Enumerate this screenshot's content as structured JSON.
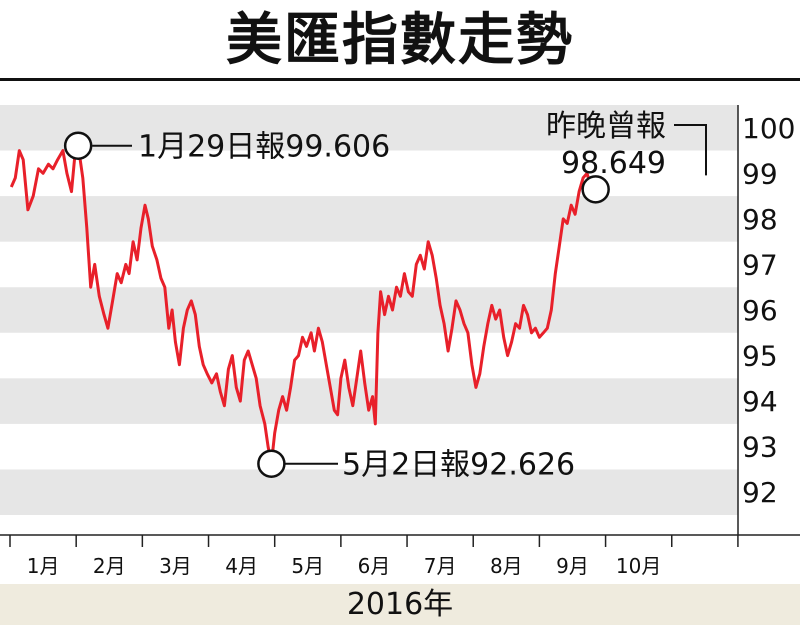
{
  "page": {
    "title": "美匯指數走勢"
  },
  "chart_data": {
    "type": "line",
    "title": "美匯指數走勢",
    "xlabel": "2016年",
    "ylabel": "",
    "ylim": [
      91.5,
      100.5
    ],
    "yticks": [
      92,
      93,
      94,
      95,
      96,
      97,
      98,
      99,
      100
    ],
    "x_range": [
      0.0,
      10.85
    ],
    "grid": "horizontal bands",
    "months": [
      "1月",
      "2月",
      "3月",
      "4月",
      "5月",
      "6月",
      "7月",
      "8月",
      "9月",
      "10月"
    ],
    "series": [
      {
        "name": "",
        "color": "#e8202a",
        "points": [
          [
            0.02,
            98.7
          ],
          [
            0.08,
            98.9
          ],
          [
            0.14,
            99.5
          ],
          [
            0.2,
            99.3
          ],
          [
            0.27,
            98.2
          ],
          [
            0.35,
            98.5
          ],
          [
            0.43,
            99.1
          ],
          [
            0.5,
            99.0
          ],
          [
            0.58,
            99.2
          ],
          [
            0.65,
            99.1
          ],
          [
            0.72,
            99.3
          ],
          [
            0.8,
            99.5
          ],
          [
            0.86,
            99.0
          ],
          [
            0.93,
            98.6
          ],
          [
            0.98,
            99.4
          ],
          [
            1.03,
            99.606
          ],
          [
            1.1,
            98.9
          ],
          [
            1.16,
            97.8
          ],
          [
            1.22,
            96.5
          ],
          [
            1.28,
            97.0
          ],
          [
            1.35,
            96.3
          ],
          [
            1.42,
            95.9
          ],
          [
            1.48,
            95.6
          ],
          [
            1.55,
            96.2
          ],
          [
            1.62,
            96.8
          ],
          [
            1.68,
            96.6
          ],
          [
            1.75,
            97.0
          ],
          [
            1.8,
            96.8
          ],
          [
            1.86,
            97.5
          ],
          [
            1.92,
            97.1
          ],
          [
            1.98,
            97.8
          ],
          [
            2.04,
            98.3
          ],
          [
            2.09,
            98.0
          ],
          [
            2.15,
            97.4
          ],
          [
            2.22,
            97.1
          ],
          [
            2.28,
            96.7
          ],
          [
            2.34,
            96.5
          ],
          [
            2.4,
            95.6
          ],
          [
            2.45,
            96.0
          ],
          [
            2.5,
            95.3
          ],
          [
            2.56,
            94.8
          ],
          [
            2.62,
            95.6
          ],
          [
            2.68,
            96.0
          ],
          [
            2.74,
            96.2
          ],
          [
            2.8,
            95.9
          ],
          [
            2.86,
            95.2
          ],
          [
            2.92,
            94.8
          ],
          [
            2.98,
            94.6
          ],
          [
            3.05,
            94.4
          ],
          [
            3.12,
            94.6
          ],
          [
            3.18,
            94.2
          ],
          [
            3.24,
            93.9
          ],
          [
            3.3,
            94.7
          ],
          [
            3.36,
            95.0
          ],
          [
            3.42,
            94.3
          ],
          [
            3.48,
            94.0
          ],
          [
            3.54,
            94.9
          ],
          [
            3.6,
            95.1
          ],
          [
            3.66,
            94.8
          ],
          [
            3.72,
            94.5
          ],
          [
            3.78,
            93.9
          ],
          [
            3.85,
            93.5
          ],
          [
            3.9,
            93.0
          ],
          [
            3.95,
            92.626
          ],
          [
            4.0,
            93.3
          ],
          [
            4.06,
            93.8
          ],
          [
            4.12,
            94.1
          ],
          [
            4.18,
            93.8
          ],
          [
            4.24,
            94.3
          ],
          [
            4.3,
            94.9
          ],
          [
            4.36,
            95.0
          ],
          [
            4.42,
            95.4
          ],
          [
            4.48,
            95.2
          ],
          [
            4.55,
            95.5
          ],
          [
            4.6,
            95.1
          ],
          [
            4.66,
            95.6
          ],
          [
            4.72,
            95.3
          ],
          [
            4.78,
            94.8
          ],
          [
            4.84,
            94.3
          ],
          [
            4.9,
            93.8
          ],
          [
            4.95,
            93.7
          ],
          [
            5.0,
            94.5
          ],
          [
            5.06,
            94.9
          ],
          [
            5.12,
            94.3
          ],
          [
            5.18,
            93.9
          ],
          [
            5.24,
            94.5
          ],
          [
            5.3,
            95.1
          ],
          [
            5.36,
            94.4
          ],
          [
            5.42,
            93.8
          ],
          [
            5.48,
            94.1
          ],
          [
            5.52,
            93.5
          ],
          [
            5.56,
            95.5
          ],
          [
            5.6,
            96.4
          ],
          [
            5.66,
            95.9
          ],
          [
            5.72,
            96.3
          ],
          [
            5.78,
            96.0
          ],
          [
            5.84,
            96.5
          ],
          [
            5.9,
            96.3
          ],
          [
            5.96,
            96.8
          ],
          [
            6.02,
            96.4
          ],
          [
            6.08,
            96.3
          ],
          [
            6.14,
            97.0
          ],
          [
            6.2,
            97.2
          ],
          [
            6.26,
            96.9
          ],
          [
            6.32,
            97.5
          ],
          [
            6.38,
            97.2
          ],
          [
            6.44,
            96.7
          ],
          [
            6.5,
            96.1
          ],
          [
            6.56,
            95.7
          ],
          [
            6.62,
            95.1
          ],
          [
            6.68,
            95.6
          ],
          [
            6.74,
            96.2
          ],
          [
            6.8,
            96.0
          ],
          [
            6.86,
            95.7
          ],
          [
            6.92,
            95.5
          ],
          [
            6.98,
            94.8
          ],
          [
            7.04,
            94.3
          ],
          [
            7.1,
            94.6
          ],
          [
            7.16,
            95.2
          ],
          [
            7.22,
            95.7
          ],
          [
            7.28,
            96.1
          ],
          [
            7.34,
            95.8
          ],
          [
            7.4,
            96.0
          ],
          [
            7.46,
            95.4
          ],
          [
            7.52,
            95.0
          ],
          [
            7.58,
            95.3
          ],
          [
            7.64,
            95.7
          ],
          [
            7.7,
            95.6
          ],
          [
            7.76,
            96.1
          ],
          [
            7.82,
            95.9
          ],
          [
            7.88,
            95.5
          ],
          [
            7.94,
            95.6
          ],
          [
            8.0,
            95.4
          ],
          [
            8.06,
            95.5
          ],
          [
            8.12,
            95.6
          ],
          [
            8.18,
            96.0
          ],
          [
            8.24,
            96.8
          ],
          [
            8.3,
            97.4
          ],
          [
            8.36,
            98.0
          ],
          [
            8.42,
            97.9
          ],
          [
            8.48,
            98.3
          ],
          [
            8.54,
            98.1
          ],
          [
            8.6,
            98.6
          ],
          [
            8.66,
            98.9
          ],
          [
            8.72,
            99.0
          ],
          [
            8.78,
            98.7
          ],
          [
            8.85,
            98.649
          ]
        ]
      }
    ],
    "annotations": [
      {
        "x": 1.03,
        "y": 99.606,
        "text": "1月29日報99.606"
      },
      {
        "x": 3.95,
        "y": 92.626,
        "text": "5月2日報92.626"
      },
      {
        "x": 8.85,
        "y": 98.649,
        "text_line1": "昨晚曾報",
        "text_line2": "98.649"
      }
    ]
  }
}
